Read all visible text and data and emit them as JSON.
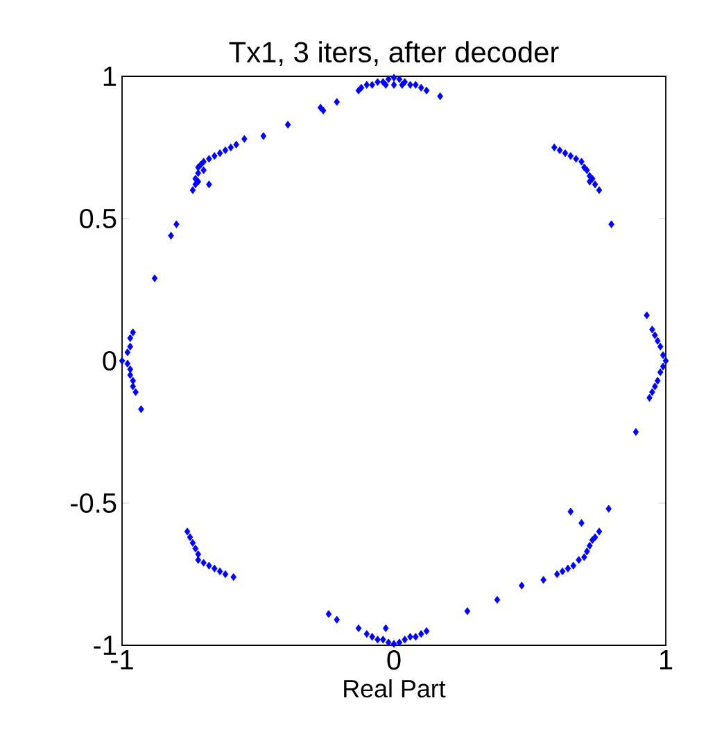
{
  "chart_data": {
    "type": "scatter",
    "title": "Tx1, 3 iters, after decoder",
    "xlabel": "Real Part",
    "color": "#0000ff",
    "marker": "diamond",
    "x": [
      -0.12,
      -0.1,
      -0.08,
      -0.06,
      -0.04,
      -0.02,
      0,
      0.02,
      0.04,
      0.06,
      0.08,
      0.1,
      0.12,
      0,
      0.03,
      -0.03,
      0.17,
      -0.13,
      -0.21,
      -0.27,
      -0.26,
      -0.39,
      -0.48,
      -0.55,
      -0.58,
      -0.6,
      -0.62,
      -0.64,
      -0.66,
      -0.68,
      -0.7,
      -0.71,
      -0.72,
      -0.72,
      -0.73,
      -0.73,
      -0.74,
      -0.72,
      -0.7,
      -0.68,
      -0.8,
      -0.82,
      0.59,
      0.61,
      0.63,
      0.65,
      0.67,
      0.69,
      0.7,
      0.71,
      0.72,
      0.73,
      0.74,
      0.755,
      0.72,
      0.8,
      -0.88,
      -0.96,
      -0.97,
      -0.97,
      -0.98,
      -1.0,
      -0.98,
      -0.97,
      -0.97,
      -0.96,
      -0.96,
      -0.95,
      -0.93,
      0.93,
      0.95,
      0.96,
      0.97,
      0.98,
      0.99,
      1.0,
      0.99,
      0.98,
      0.97,
      0.96,
      0.95,
      0.94,
      0.89,
      -0.76,
      -0.75,
      -0.74,
      -0.73,
      -0.72,
      -0.72,
      -0.7,
      -0.68,
      -0.66,
      -0.64,
      -0.62,
      -0.59,
      -0.24,
      -0.21,
      -0.13,
      -0.1,
      -0.08,
      -0.06,
      -0.04,
      -0.02,
      0,
      0.02,
      0.04,
      0.06,
      0.08,
      0.1,
      0.12,
      -0.03,
      0.27,
      0.38,
      0.47,
      0.55,
      0.6,
      0.62,
      0.64,
      0.66,
      0.68,
      0.7,
      0.71,
      0.72,
      0.73,
      0.74,
      0.755,
      0.65,
      0.69,
      0.79
    ],
    "values": [
      0.96,
      0.97,
      0.97,
      0.98,
      0.98,
      0.99,
      0.995,
      0.99,
      0.98,
      0.97,
      0.97,
      0.96,
      0.95,
      0.97,
      0.97,
      0.97,
      0.93,
      0.95,
      0.91,
      0.89,
      0.88,
      0.83,
      0.79,
      0.78,
      0.76,
      0.75,
      0.74,
      0.73,
      0.72,
      0.71,
      0.7,
      0.69,
      0.68,
      0.66,
      0.64,
      0.62,
      0.6,
      0.63,
      0.67,
      0.62,
      0.48,
      0.44,
      0.75,
      0.74,
      0.73,
      0.72,
      0.71,
      0.7,
      0.68,
      0.67,
      0.65,
      0.64,
      0.62,
      0.6,
      0.63,
      0.48,
      0.29,
      0.1,
      0.08,
      0.05,
      0.03,
      0.0,
      -0.01,
      -0.03,
      -0.05,
      -0.07,
      -0.09,
      -0.11,
      -0.17,
      0.16,
      0.11,
      0.09,
      0.07,
      0.05,
      0.02,
      0.0,
      -0.02,
      -0.04,
      -0.07,
      -0.09,
      -0.11,
      -0.13,
      -0.25,
      -0.6,
      -0.62,
      -0.64,
      -0.66,
      -0.68,
      -0.7,
      -0.71,
      -0.72,
      -0.73,
      -0.74,
      -0.75,
      -0.76,
      -0.89,
      -0.91,
      -0.94,
      -0.96,
      -0.97,
      -0.98,
      -0.98,
      -0.99,
      -0.995,
      -0.99,
      -0.98,
      -0.97,
      -0.97,
      -0.96,
      -0.95,
      -0.94,
      -0.88,
      -0.84,
      -0.79,
      -0.77,
      -0.75,
      -0.74,
      -0.73,
      -0.72,
      -0.7,
      -0.69,
      -0.67,
      -0.65,
      -0.63,
      -0.62,
      -0.6,
      -0.53,
      -0.57,
      -0.52
    ],
    "xlim": [
      -1,
      1
    ],
    "ylim": [
      -1,
      1
    ],
    "xticks": [
      -1,
      0,
      1
    ],
    "yticks": [
      -1,
      -0.5,
      0,
      0.5,
      1
    ]
  }
}
